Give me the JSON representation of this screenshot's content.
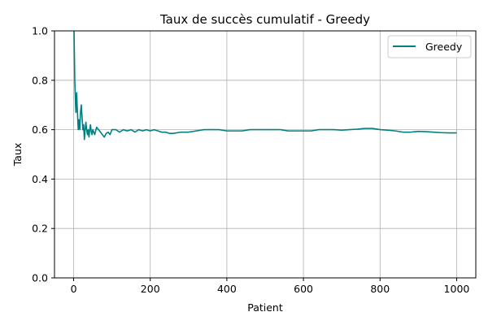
{
  "chart_data": {
    "type": "line",
    "title": "Taux de succès cumulatif - Greedy",
    "xlabel": "Patient",
    "ylabel": "Taux",
    "xlim": [
      -50,
      1050
    ],
    "ylim": [
      0.0,
      1.0
    ],
    "xticks": [
      0,
      200,
      400,
      600,
      800,
      1000
    ],
    "yticks": [
      0.0,
      0.2,
      0.4,
      0.6,
      0.8,
      1.0
    ],
    "xtick_labels": [
      "0",
      "200",
      "400",
      "600",
      "800",
      "1000"
    ],
    "ytick_labels": [
      "0.0",
      "0.2",
      "0.4",
      "0.6",
      "0.8",
      "1.0"
    ],
    "grid": true,
    "legend_position": "top-right",
    "series": [
      {
        "name": "Greedy",
        "color": "#008080",
        "x": [
          1,
          2,
          3,
          4,
          5,
          6,
          7,
          8,
          9,
          10,
          12,
          14,
          16,
          18,
          20,
          22,
          24,
          26,
          28,
          30,
          32,
          34,
          36,
          38,
          40,
          42,
          44,
          46,
          48,
          50,
          55,
          60,
          65,
          70,
          75,
          80,
          85,
          90,
          95,
          100,
          110,
          120,
          130,
          140,
          150,
          160,
          170,
          180,
          190,
          200,
          210,
          220,
          230,
          240,
          250,
          260,
          280,
          300,
          320,
          340,
          360,
          380,
          400,
          420,
          440,
          460,
          480,
          500,
          520,
          540,
          560,
          580,
          600,
          620,
          640,
          660,
          680,
          700,
          720,
          740,
          760,
          780,
          800,
          820,
          840,
          860,
          880,
          900,
          920,
          940,
          960,
          980,
          1000
        ],
        "y": [
          1.0,
          0.9,
          0.8,
          0.75,
          0.7,
          0.67,
          0.72,
          0.75,
          0.7,
          0.67,
          0.6,
          0.64,
          0.6,
          0.67,
          0.7,
          0.65,
          0.6,
          0.62,
          0.56,
          0.6,
          0.63,
          0.6,
          0.58,
          0.6,
          0.57,
          0.6,
          0.62,
          0.59,
          0.58,
          0.6,
          0.58,
          0.61,
          0.6,
          0.59,
          0.58,
          0.57,
          0.585,
          0.59,
          0.58,
          0.6,
          0.6,
          0.59,
          0.6,
          0.595,
          0.6,
          0.59,
          0.6,
          0.595,
          0.6,
          0.595,
          0.6,
          0.595,
          0.59,
          0.59,
          0.585,
          0.585,
          0.59,
          0.59,
          0.595,
          0.6,
          0.6,
          0.6,
          0.595,
          0.595,
          0.595,
          0.6,
          0.6,
          0.6,
          0.6,
          0.6,
          0.595,
          0.595,
          0.595,
          0.595,
          0.6,
          0.6,
          0.6,
          0.598,
          0.6,
          0.602,
          0.605,
          0.605,
          0.6,
          0.598,
          0.595,
          0.59,
          0.59,
          0.593,
          0.592,
          0.59,
          0.588,
          0.587,
          0.587
        ]
      }
    ]
  }
}
